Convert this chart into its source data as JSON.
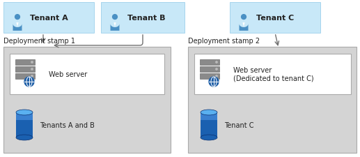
{
  "fig_width": 5.17,
  "fig_height": 2.26,
  "dpi": 100,
  "bg_color": "#ffffff",
  "tenant_box_color": "#c8e8f8",
  "stamp_box_color": "#d4d4d4",
  "webserver_box_color": "#ffffff",
  "tenant_labels": [
    "Tenant A",
    "Tenant B",
    "Tenant C"
  ],
  "stamp1_label": "Deployment stamp 1",
  "stamp2_label": "Deployment stamp 2",
  "webserver1_label": "Web server",
  "webserver2_label": "Web server\n(Dedicated to tenant C)",
  "db1_label": "Tenants A and B",
  "db2_label": "Tenant C",
  "arrow_color": "#707070",
  "text_color": "#222222",
  "label_fontsize": 7.0,
  "tenant_fontsize": 8.0,
  "stamp_fontsize": 7.0
}
